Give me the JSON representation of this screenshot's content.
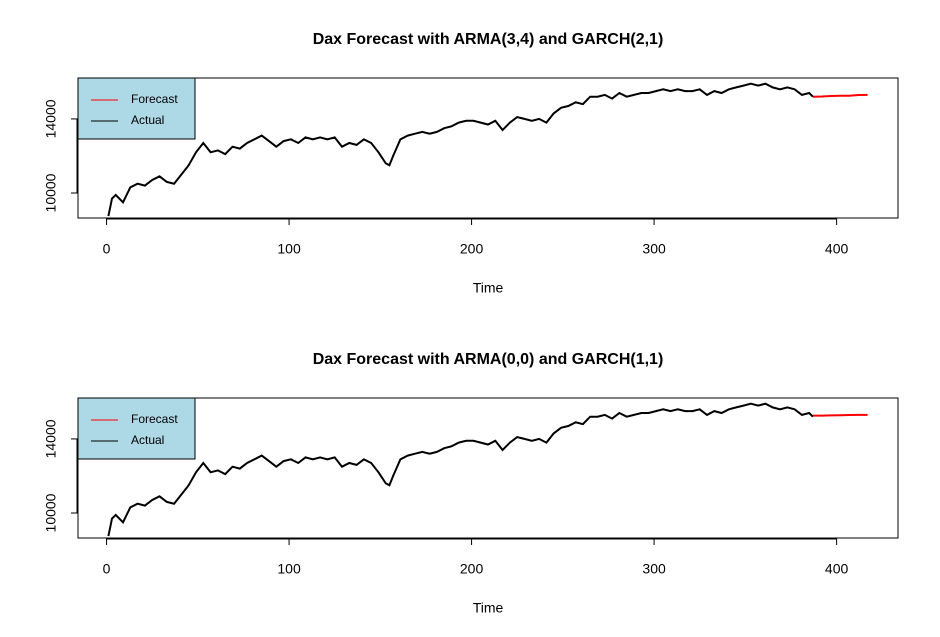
{
  "chart_data": [
    {
      "type": "line",
      "title": "Dax Forecast with ARMA(3,4) and GARCH(2,1)",
      "x_label": "Time",
      "xlim": [
        -15.64,
        433.64
      ],
      "xticks": [
        0,
        100,
        200,
        300,
        400
      ],
      "ylim": [
        8650,
        16210
      ],
      "yticks": [
        10000,
        14000
      ],
      "legend": "topleft",
      "legend_fill": "#add8e6",
      "series": [
        {
          "name": "Forecast",
          "color": "red",
          "x": [
            387,
            392,
            397,
            402,
            407,
            412,
            417
          ],
          "values": [
            15200,
            15210,
            15240,
            15250,
            15250,
            15290,
            15300
          ]
        },
        {
          "name": "Actual",
          "color": "black",
          "x": [
            1,
            3,
            5,
            9,
            13,
            17,
            21,
            25,
            29,
            33,
            37,
            41,
            45,
            49,
            53,
            57,
            61,
            65,
            69,
            73,
            77,
            81,
            85,
            89,
            93,
            97,
            101,
            105,
            109,
            113,
            117,
            121,
            125,
            129,
            133,
            137,
            141,
            145,
            149,
            153,
            155,
            157,
            161,
            165,
            169,
            173,
            177,
            181,
            185,
            189,
            193,
            197,
            201,
            205,
            209,
            213,
            217,
            221,
            225,
            229,
            233,
            237,
            241,
            245,
            249,
            253,
            257,
            261,
            265,
            269,
            273,
            277,
            281,
            285,
            289,
            293,
            297,
            301,
            305,
            309,
            313,
            317,
            321,
            325,
            329,
            333,
            337,
            341,
            345,
            349,
            353,
            357,
            361,
            365,
            369,
            373,
            377,
            381,
            385,
            387
          ],
          "values": [
            8750,
            9700,
            9900,
            9500,
            10300,
            10500,
            10400,
            10700,
            10900,
            10600,
            10500,
            11000,
            11500,
            12200,
            12700,
            12200,
            12300,
            12100,
            12500,
            12400,
            12700,
            12900,
            13100,
            12800,
            12500,
            12800,
            12900,
            12700,
            13000,
            12900,
            13000,
            12900,
            13000,
            12500,
            12700,
            12600,
            12900,
            12700,
            12200,
            11600,
            11500,
            12000,
            12900,
            13100,
            13200,
            13300,
            13200,
            13300,
            13500,
            13600,
            13800,
            13900,
            13900,
            13800,
            13700,
            13900,
            13400,
            13800,
            14100,
            14000,
            13900,
            14000,
            13800,
            14300,
            14600,
            14700,
            14900,
            14800,
            15200,
            15200,
            15300,
            15100,
            15400,
            15200,
            15300,
            15400,
            15400,
            15500,
            15600,
            15500,
            15600,
            15500,
            15500,
            15600,
            15300,
            15500,
            15400,
            15600,
            15700,
            15800,
            15900,
            15800,
            15900,
            15700,
            15600,
            15700,
            15600,
            15300,
            15400,
            15200
          ]
        }
      ]
    },
    {
      "type": "line",
      "title": "Dax Forecast with ARMA(0,0) and GARCH(1,1)",
      "x_label": "Time",
      "xlim": [
        -15.64,
        433.64
      ],
      "xticks": [
        0,
        100,
        200,
        300,
        400
      ],
      "ylim": [
        8650,
        16210
      ],
      "yticks": [
        10000,
        14000
      ],
      "legend": "topleft",
      "legend_fill": "#add8e6",
      "series": [
        {
          "name": "Forecast",
          "color": "red",
          "x": [
            387,
            392,
            397,
            402,
            407,
            412,
            417
          ],
          "values": [
            15260,
            15260,
            15270,
            15280,
            15290,
            15300,
            15300
          ]
        },
        {
          "name": "Actual",
          "color": "black",
          "x": [
            1,
            3,
            5,
            9,
            13,
            17,
            21,
            25,
            29,
            33,
            37,
            41,
            45,
            49,
            53,
            57,
            61,
            65,
            69,
            73,
            77,
            81,
            85,
            89,
            93,
            97,
            101,
            105,
            109,
            113,
            117,
            121,
            125,
            129,
            133,
            137,
            141,
            145,
            149,
            153,
            155,
            157,
            161,
            165,
            169,
            173,
            177,
            181,
            185,
            189,
            193,
            197,
            201,
            205,
            209,
            213,
            217,
            221,
            225,
            229,
            233,
            237,
            241,
            245,
            249,
            253,
            257,
            261,
            265,
            269,
            273,
            277,
            281,
            285,
            289,
            293,
            297,
            301,
            305,
            309,
            313,
            317,
            321,
            325,
            329,
            333,
            337,
            341,
            345,
            349,
            353,
            357,
            361,
            365,
            369,
            373,
            377,
            381,
            385,
            387
          ],
          "values": [
            8750,
            9700,
            9900,
            9500,
            10300,
            10500,
            10400,
            10700,
            10900,
            10600,
            10500,
            11000,
            11500,
            12200,
            12700,
            12200,
            12300,
            12100,
            12500,
            12400,
            12700,
            12900,
            13100,
            12800,
            12500,
            12800,
            12900,
            12700,
            13000,
            12900,
            13000,
            12900,
            13000,
            12500,
            12700,
            12600,
            12900,
            12700,
            12200,
            11600,
            11500,
            12000,
            12900,
            13100,
            13200,
            13300,
            13200,
            13300,
            13500,
            13600,
            13800,
            13900,
            13900,
            13800,
            13700,
            13900,
            13400,
            13800,
            14100,
            14000,
            13900,
            14000,
            13800,
            14300,
            14600,
            14700,
            14900,
            14800,
            15200,
            15200,
            15300,
            15100,
            15400,
            15200,
            15300,
            15400,
            15400,
            15500,
            15600,
            15500,
            15600,
            15500,
            15500,
            15600,
            15300,
            15500,
            15400,
            15600,
            15700,
            15800,
            15900,
            15800,
            15900,
            15700,
            15600,
            15700,
            15600,
            15300,
            15400,
            15200
          ]
        }
      ]
    }
  ]
}
